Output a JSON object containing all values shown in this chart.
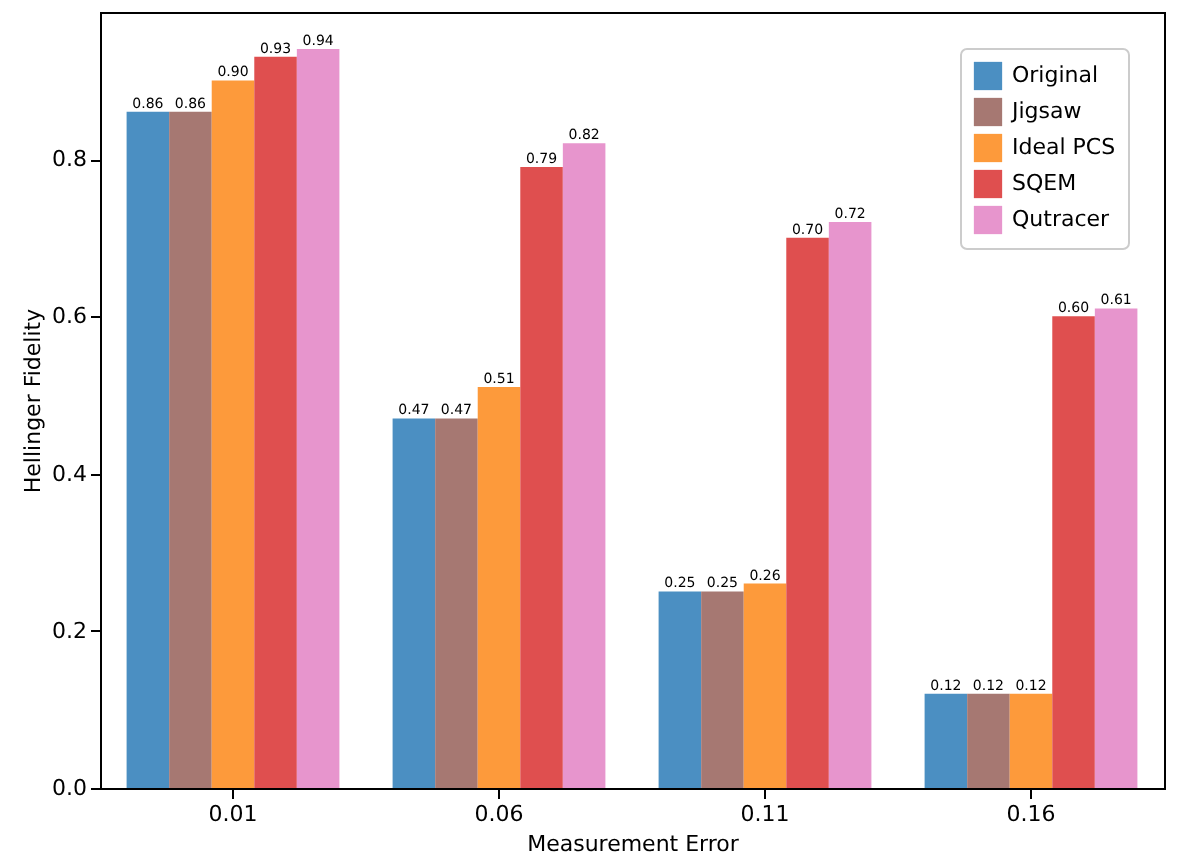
{
  "chart_data": {
    "type": "bar",
    "xlabel": "Measurement Error",
    "ylabel": "Hellinger Fidelity",
    "categories": [
      "0.01",
      "0.06",
      "0.11",
      "0.16"
    ],
    "series": [
      {
        "name": "Original",
        "color": "#4b8fc2",
        "values": [
          0.86,
          0.47,
          0.25,
          0.12
        ],
        "value_labels": [
          "0.86",
          "0.47",
          "0.25",
          "0.12"
        ]
      },
      {
        "name": "Jigsaw",
        "color": "#a67872",
        "values": [
          0.86,
          0.47,
          0.25,
          0.12
        ],
        "value_labels": [
          "0.86",
          "0.47",
          "0.25",
          "0.12"
        ]
      },
      {
        "name": "Ideal PCS",
        "color": "#fd9a3b",
        "values": [
          0.9,
          0.51,
          0.26,
          0.12
        ],
        "value_labels": [
          "0.90",
          "0.51",
          "0.26",
          "0.12"
        ]
      },
      {
        "name": "SQEM",
        "color": "#df4f4f",
        "values": [
          0.93,
          0.79,
          0.7,
          0.6
        ],
        "value_labels": [
          "0.93",
          "0.79",
          "0.70",
          "0.60"
        ]
      },
      {
        "name": "Qutracer",
        "color": "#e795cd",
        "values": [
          0.94,
          0.82,
          0.72,
          0.61
        ],
        "value_labels": [
          "0.94",
          "0.82",
          "0.72",
          "0.61"
        ]
      }
    ],
    "ylim": [
      0,
      0.987
    ],
    "yticks": [
      {
        "value": 0,
        "label": "0.0"
      },
      0.2,
      0.4,
      0.6,
      0.8
    ],
    "legend": "top right",
    "grid": false
  }
}
